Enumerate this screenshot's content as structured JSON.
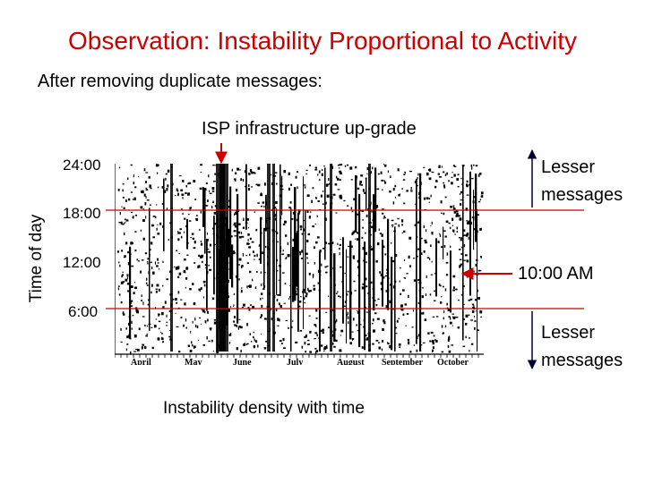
{
  "slide": {
    "title": "Observation: Instability Proportional to Activity",
    "subtitle": "After removing duplicate messages:",
    "isp_label": "ISP infrastructure up-grade",
    "y_axis_label": "Time of day",
    "y_ticks": [
      "24:00",
      "18:00",
      "12:00",
      "6:00"
    ],
    "x_months": [
      "April",
      "May",
      "June",
      "July",
      "August",
      "September",
      "October"
    ],
    "caption": "Instability density with time",
    "label_top_line1": "Lesser",
    "label_top_line2": "messages",
    "label_mid": "10:00 AM",
    "label_bot_line1": "Lesser",
    "label_bot_line2": "messages"
  },
  "colors": {
    "title": "#cc0000",
    "annotation_line": "#cc0000",
    "arrow_dark": "#000033",
    "plot_ink": "#000000"
  }
}
